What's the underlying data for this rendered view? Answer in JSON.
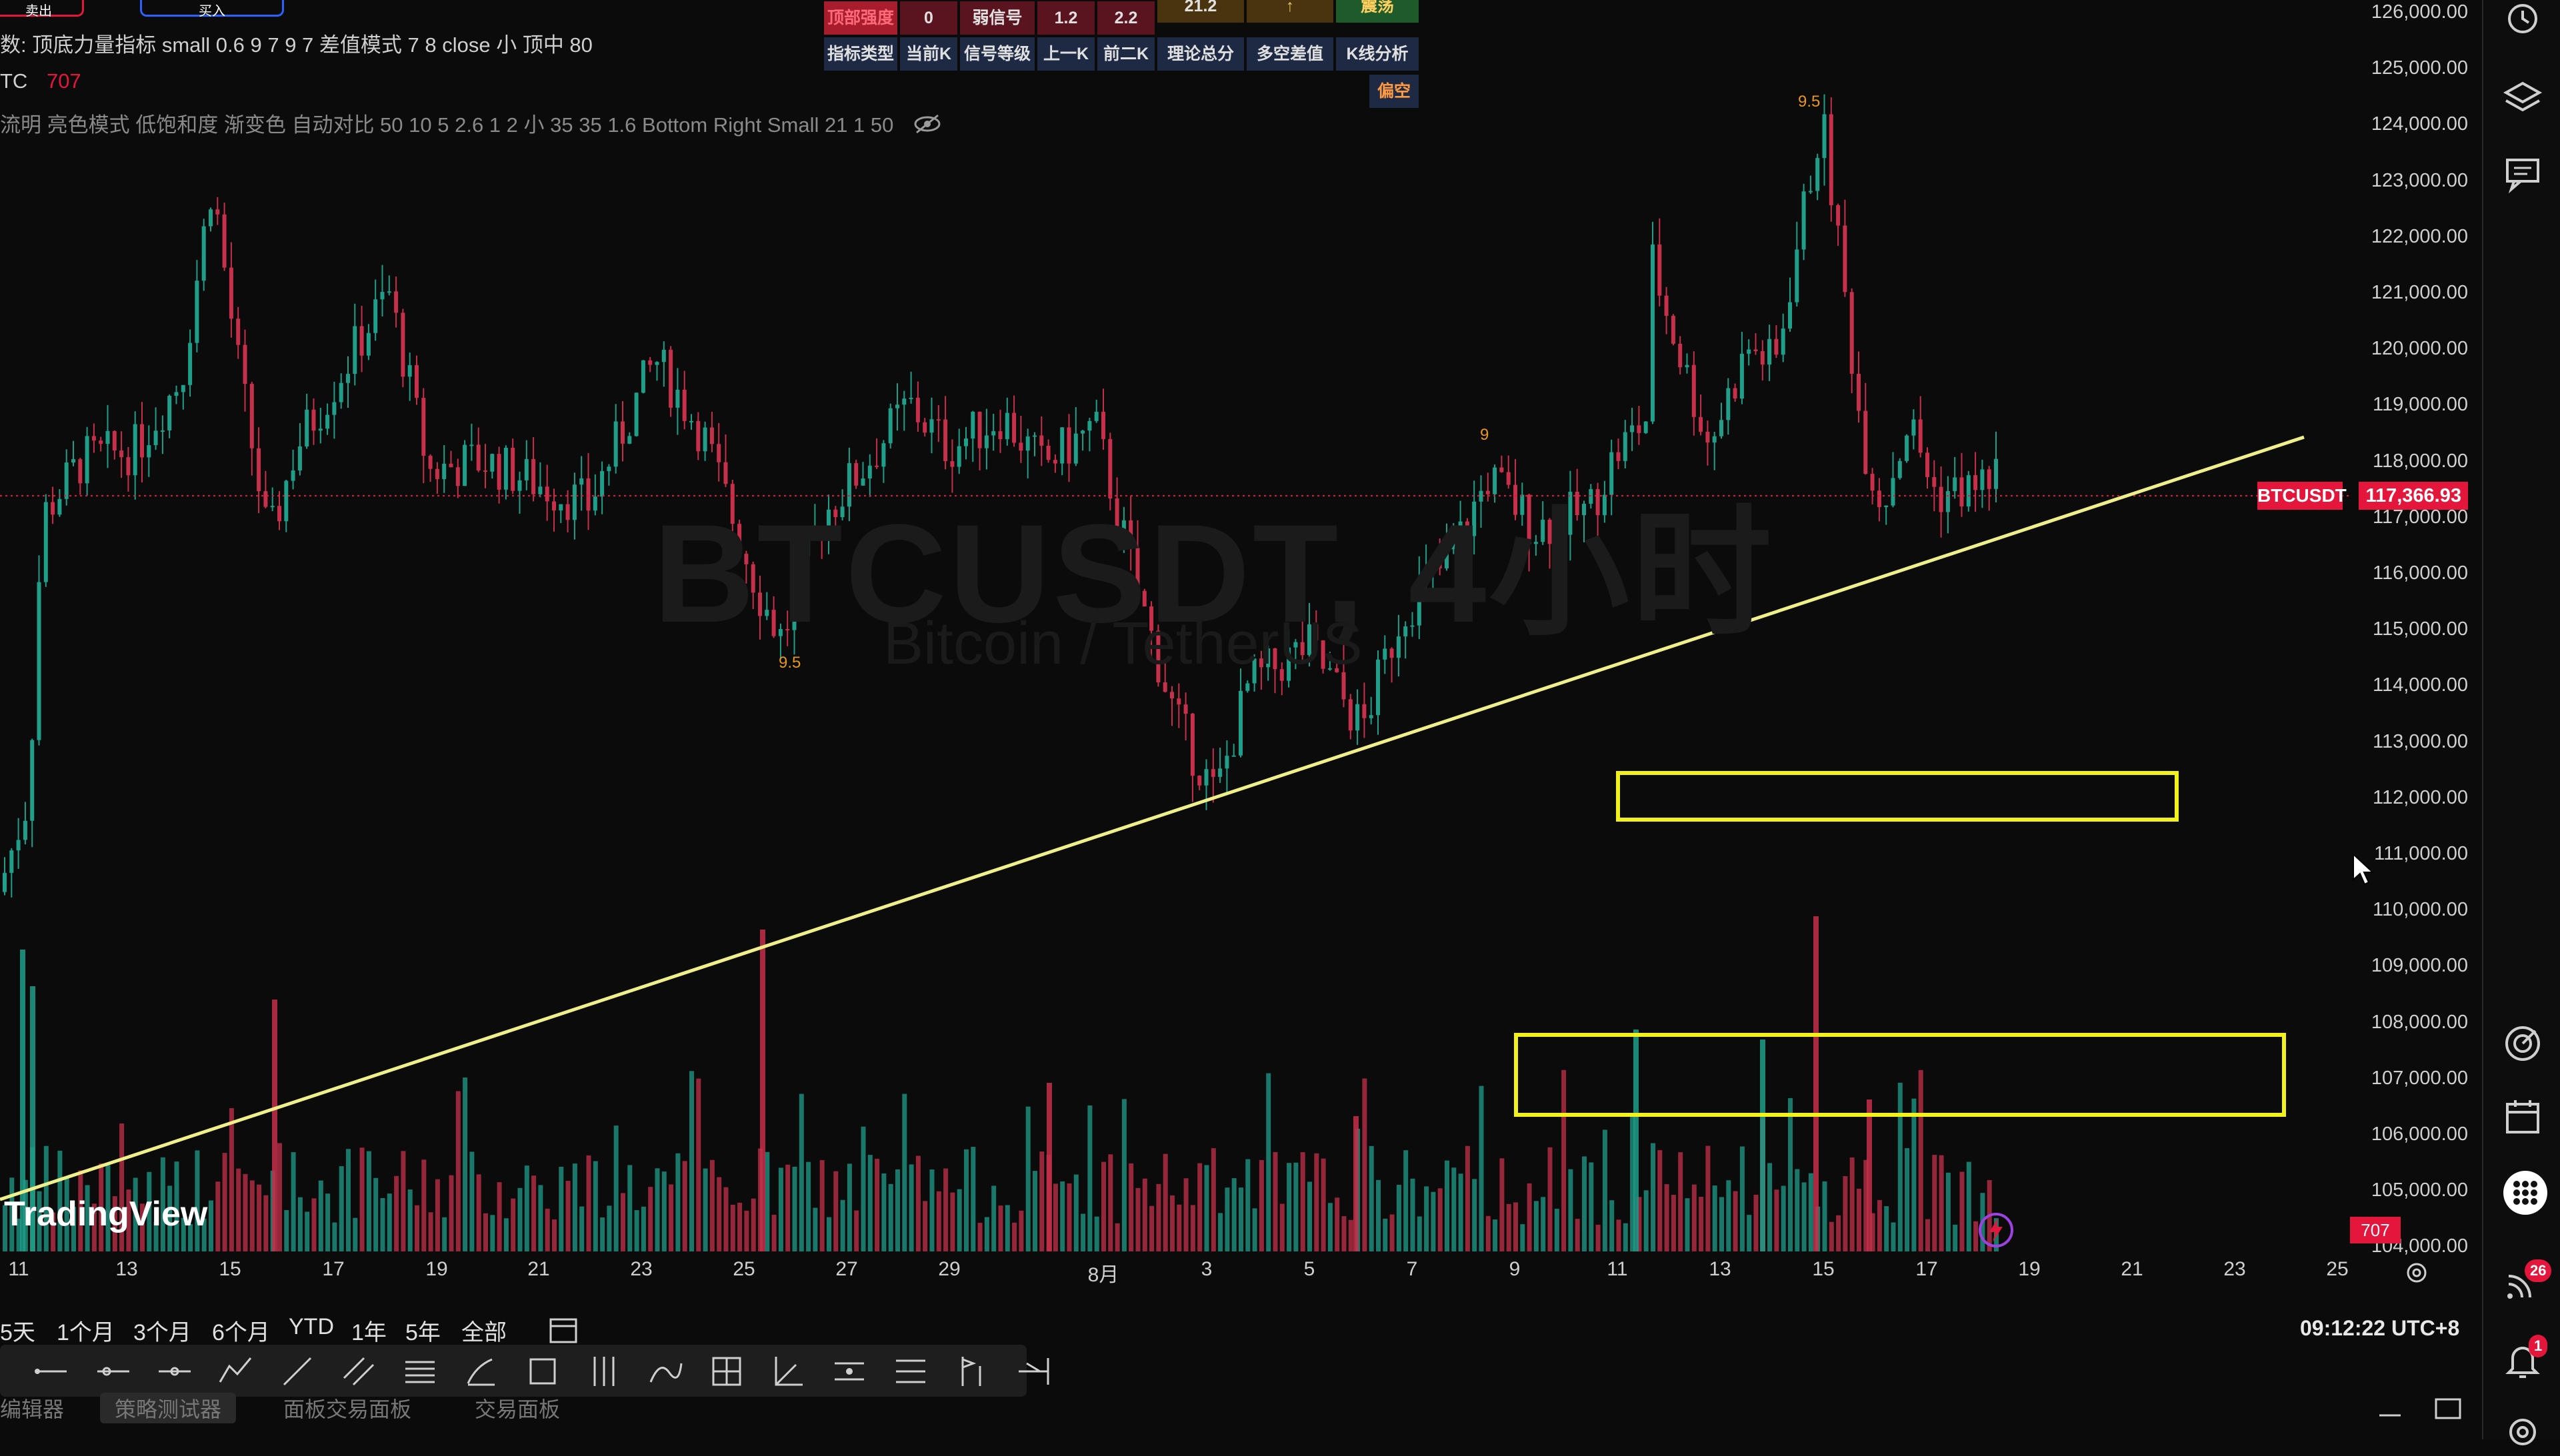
{
  "legend": {
    "line1": "数: 顶底力量指标 small 0.6 9 7 9 7 差值模式 7 8 close 小 顶中 80",
    "line2_symbol": "TC",
    "line2_value": "707",
    "line3": "流明 亮色模式 低饱和度 渐变色 自动对比 50 10 5 2.6 1 2 小 35 35 1.6 Bottom Right Small 21 1 50"
  },
  "top_buttons": {
    "sell": "卖出",
    "buy": "买入"
  },
  "signal_table": {
    "row1": [
      "顶部强度",
      "0",
      "弱信号",
      "1.2",
      "2.2",
      "21.2",
      "↑",
      "震荡"
    ],
    "row2": [
      "指标类型",
      "当前K",
      "信号等级",
      "上一K",
      "前二K",
      "理论总分",
      "多空差值",
      "K线分析"
    ],
    "row3": [
      "",
      "",
      "",
      "",
      "",
      "",
      "",
      "偏空"
    ]
  },
  "watermark": {
    "symbol": "BTCUSDT, 4小时",
    "name": "Bitcoin / TetherUS"
  },
  "y_axis": {
    "labels": [
      "126,000.00",
      "125,000.00",
      "124,000.00",
      "123,000.00",
      "122,000.00",
      "121,000.00",
      "120,000.00",
      "119,000.00",
      "118,000.00",
      "117,000.00",
      "116,000.00",
      "115,000.00",
      "114,000.00",
      "113,000.00",
      "112,000.00",
      "111,000.00",
      "110,000.00",
      "109,000.00",
      "108,000.00",
      "107,000.00",
      "106,000.00",
      "105,000.00",
      "104,000.00"
    ],
    "current_symbol": "BTCUSDT",
    "current_price": "117,366.93",
    "volume_value": "707"
  },
  "x_axis": {
    "labels": [
      "11",
      "13",
      "15",
      "17",
      "19",
      "21",
      "23",
      "25",
      "27",
      "29",
      "8月",
      "3",
      "5",
      "7",
      "9",
      "11",
      "13",
      "15",
      "17",
      "19",
      "21",
      "23",
      "25"
    ]
  },
  "chart_annotations": [
    "9.5",
    "9",
    "9.5"
  ],
  "logo": "TradingView",
  "range_buttons": [
    "5天",
    "1个月",
    "3个月",
    "6个月",
    "YTD",
    "1年",
    "5年",
    "全部"
  ],
  "clock": "09:12:22 UTC+8",
  "bottom_tabs": [
    "编辑器",
    "策略测试器",
    "面板交易面板",
    "交易面板"
  ],
  "badges": {
    "news": "26",
    "alerts": "1"
  },
  "drawing_tools": [
    "trend-line-tool",
    "horizontal-ray-tool",
    "horizontal-line-tool",
    "polyline-tool",
    "ray-tool",
    "parallel-channel-tool",
    "fib-tool",
    "brush-tool",
    "rectangle-tool",
    "pitchfork-tool",
    "path-tool",
    "grid-tool",
    "angle-tool",
    "range-tool",
    "long-short-tool",
    "forecast-tool",
    "more-tools-tool"
  ],
  "colors": {
    "up": "#1f9e89",
    "down": "#c6304a",
    "trendline": "#f0f08a",
    "highlight_box": "#f2f21a",
    "price_tag": "#e4163c"
  }
}
